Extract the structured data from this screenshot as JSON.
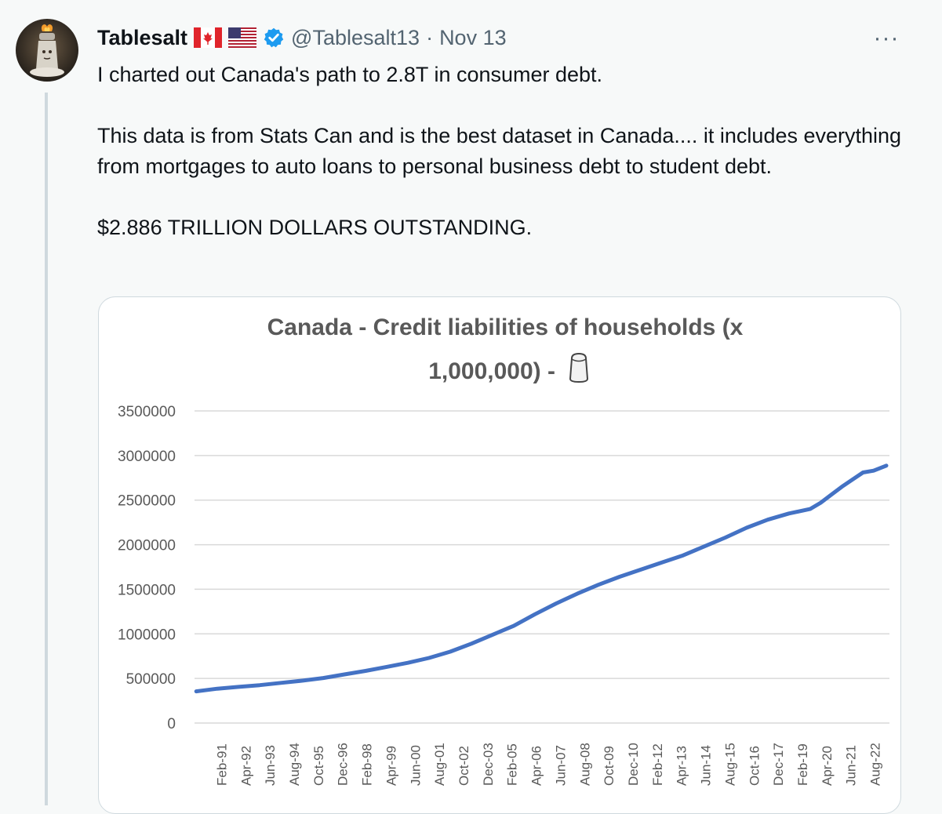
{
  "tweet": {
    "author_name": "Tablesalt",
    "flags": [
      "canada-flag-icon",
      "us-flag-icon"
    ],
    "handle": "@Tablesalt13",
    "separator": "·",
    "date": "Nov 13",
    "more_label": "···",
    "paragraphs": [
      "I charted out Canada's path to 2.8T in consumer debt.",
      "This data is from Stats Can and is the best dataset in Canada.... it includes everything from mortgages to auto loans to personal business debt to student debt.",
      "$2.886 TRILLION DOLLARS OUTSTANDING."
    ],
    "colors": {
      "verified": "#1d9bf0",
      "series": "#4472c4",
      "muted": "#536471"
    }
  },
  "chart_data": {
    "type": "line",
    "title_line1": "Canada - Credit liabilities of households (x",
    "title_line2": "1,000,000) - ",
    "title_icon": "salt-shaker-icon",
    "ylim": [
      0,
      3500000
    ],
    "yticks": [
      "3500000",
      "3000000",
      "2500000",
      "2000000",
      "1500000",
      "1000000",
      "500000",
      "0"
    ],
    "grid": true,
    "xlim": [
      1990.92,
      2023.75
    ],
    "xtick_labels": [
      "Feb-91",
      "Apr-92",
      "Jun-93",
      "Aug-94",
      "Oct-95",
      "Dec-96",
      "Feb-98",
      "Apr-99",
      "Jun-00",
      "Aug-01",
      "Oct-02",
      "Dec-03",
      "Feb-05",
      "Apr-06",
      "Jun-07",
      "Aug-08",
      "Oct-09",
      "Dec-10",
      "Feb-12",
      "Apr-13",
      "Jun-14",
      "Aug-15",
      "Oct-16",
      "Dec-17",
      "Feb-19",
      "Apr-20",
      "Jun-21",
      "Aug-22"
    ],
    "x": [
      1991.0,
      1992.0,
      1993.0,
      1994.0,
      1995.0,
      1996.0,
      1997.0,
      1998.0,
      1999.0,
      2000.0,
      2001.0,
      2002.0,
      2003.0,
      2004.0,
      2005.0,
      2006.0,
      2007.0,
      2008.0,
      2009.0,
      2010.0,
      2011.0,
      2012.0,
      2013.0,
      2014.0,
      2015.0,
      2016.0,
      2017.0,
      2018.0,
      2019.0,
      2020.0,
      2020.5,
      2021.0,
      2021.5,
      2022.0,
      2022.5,
      2023.0,
      2023.6
    ],
    "values": [
      355000,
      385000,
      405000,
      425000,
      450000,
      475000,
      505000,
      545000,
      585000,
      630000,
      675000,
      730000,
      800000,
      890000,
      990000,
      1090000,
      1220000,
      1340000,
      1450000,
      1550000,
      1640000,
      1720000,
      1800000,
      1880000,
      1980000,
      2080000,
      2190000,
      2280000,
      2350000,
      2400000,
      2470000,
      2560000,
      2650000,
      2730000,
      2810000,
      2830000,
      2886000
    ],
    "series_name": ""
  }
}
